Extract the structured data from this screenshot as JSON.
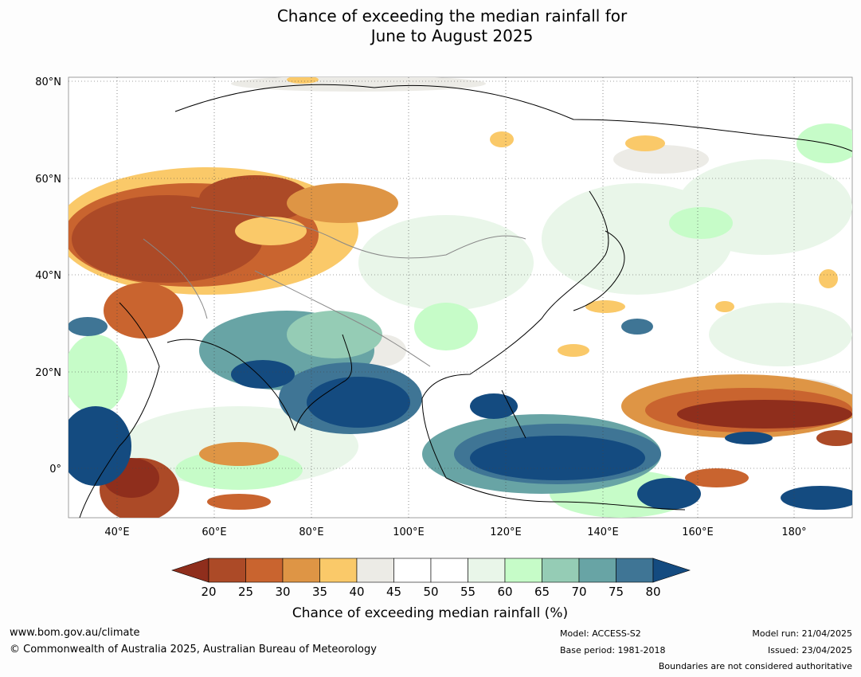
{
  "title": {
    "line1": "Chance of exceeding the median rainfall for",
    "line2": "June to August 2025"
  },
  "map": {
    "lat_labels": [
      "80°N",
      "60°N",
      "40°N",
      "20°N",
      "0°"
    ],
    "lon_labels": [
      "40°E",
      "60°E",
      "80°E",
      "100°E",
      "120°E",
      "140°E",
      "160°E",
      "180°"
    ]
  },
  "colorbar": {
    "title": "Chance of exceeding median rainfall (%)",
    "ticks": [
      "20",
      "25",
      "30",
      "35",
      "40",
      "45",
      "50",
      "55",
      "60",
      "65",
      "70",
      "75",
      "80"
    ],
    "colors": [
      "#8f2e1c",
      "#ac4a27",
      "#c9642f",
      "#de9545",
      "#fac969",
      "#ecebe6",
      "#ffffff",
      "#ffffff",
      "#e9f6e9",
      "#c6fcc8",
      "#95ccb5",
      "#68a4a5",
      "#3f7595",
      "#144b80"
    ]
  },
  "footer": {
    "website": "www.bom.gov.au/climate",
    "copyright": "© Commonwealth of Australia 2025, Australian Bureau of Meteorology",
    "model": "Model: ACCESS-S2",
    "base_period": "Base period: 1981-2018",
    "model_run": "Model run: 21/04/2025",
    "issued": "Issued: 23/04/2025",
    "disclaimer": "Boundaries are not considered authoritative"
  }
}
